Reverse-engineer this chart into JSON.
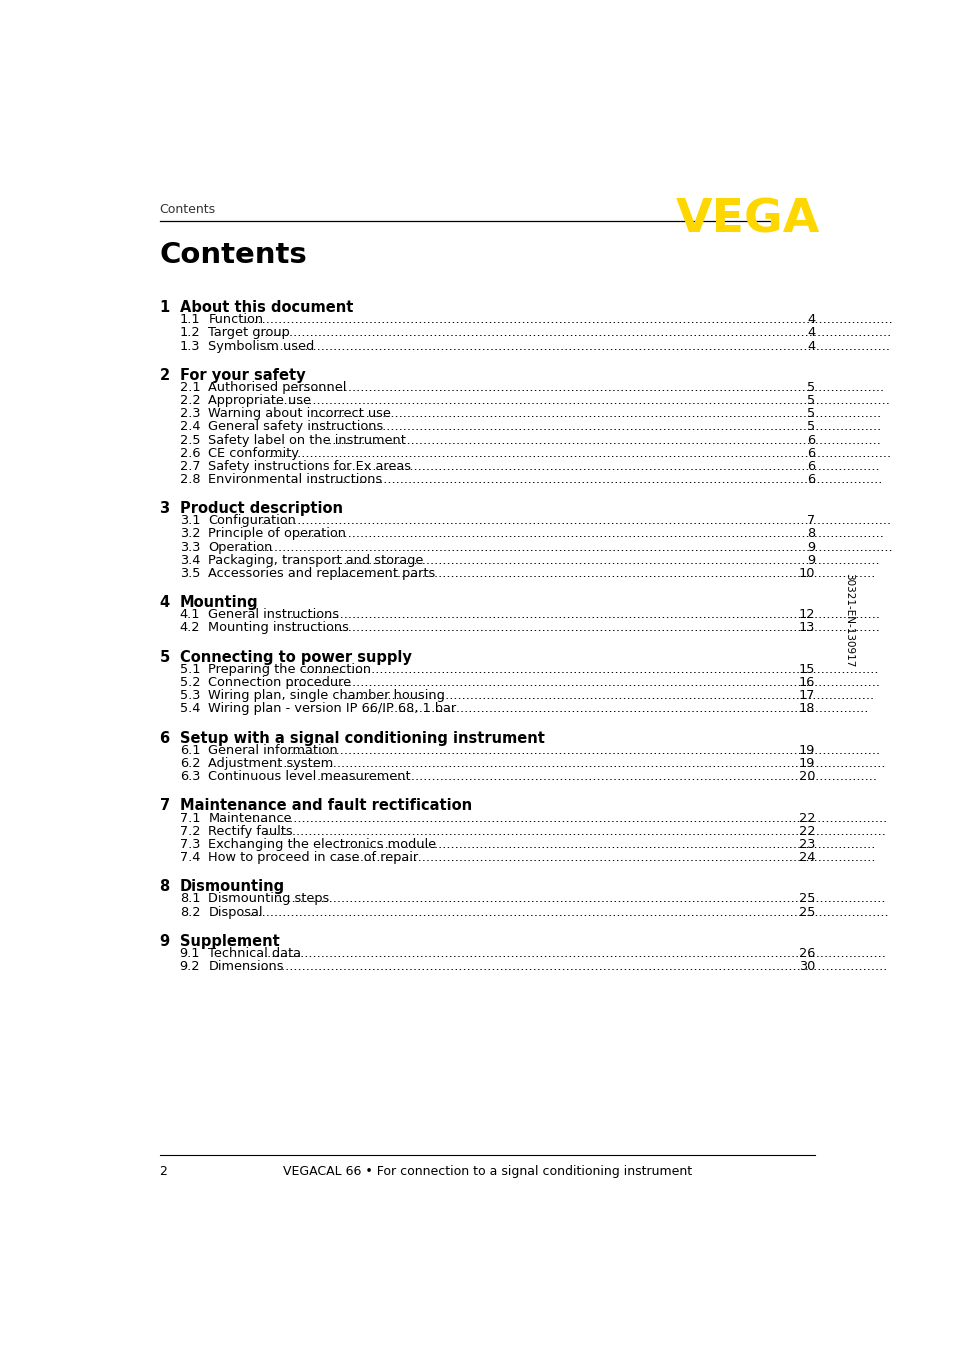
{
  "bg_color": "#ffffff",
  "header_text": "Contents",
  "header_color": "#333333",
  "vega_color": "#FFD700",
  "title": "Contents",
  "footer_page": "2",
  "footer_text": "VEGACAL 66 • For connection to a signal conditioning instrument",
  "side_text": "30321-EN-130917",
  "sections": [
    {
      "num": "1",
      "title": "About this document",
      "items": [
        {
          "num": "1.1",
          "text": "Function",
          "page": "4"
        },
        {
          "num": "1.2",
          "text": "Target group",
          "page": "4"
        },
        {
          "num": "1.3",
          "text": "Symbolism used",
          "page": "4"
        }
      ]
    },
    {
      "num": "2",
      "title": "For your safety",
      "items": [
        {
          "num": "2.1",
          "text": "Authorised personnel",
          "page": "5"
        },
        {
          "num": "2.2",
          "text": "Appropriate use",
          "page": "5"
        },
        {
          "num": "2.3",
          "text": "Warning about incorrect use",
          "page": "5"
        },
        {
          "num": "2.4",
          "text": "General safety instructions",
          "page": "5"
        },
        {
          "num": "2.5",
          "text": "Safety label on the instrument",
          "page": "6"
        },
        {
          "num": "2.6",
          "text": "CE conformity",
          "page": "6"
        },
        {
          "num": "2.7",
          "text": "Safety instructions for Ex areas",
          "page": "6"
        },
        {
          "num": "2.8",
          "text": "Environmental instructions",
          "page": "6"
        }
      ]
    },
    {
      "num": "3",
      "title": "Product description",
      "items": [
        {
          "num": "3.1",
          "text": "Configuration",
          "page": "7"
        },
        {
          "num": "3.2",
          "text": "Principle of operation",
          "page": "8"
        },
        {
          "num": "3.3",
          "text": "Operation",
          "page": "9"
        },
        {
          "num": "3.4",
          "text": "Packaging, transport and storage",
          "page": "9"
        },
        {
          "num": "3.5",
          "text": "Accessories and replacement parts",
          "page": "10"
        }
      ]
    },
    {
      "num": "4",
      "title": "Mounting",
      "items": [
        {
          "num": "4.1",
          "text": "General instructions",
          "page": "12"
        },
        {
          "num": "4.2",
          "text": "Mounting instructions",
          "page": "13"
        }
      ]
    },
    {
      "num": "5",
      "title": "Connecting to power supply",
      "items": [
        {
          "num": "5.1",
          "text": "Preparing the connection",
          "page": "15"
        },
        {
          "num": "5.2",
          "text": "Connection procedure",
          "page": "16"
        },
        {
          "num": "5.3",
          "text": "Wiring plan, single chamber housing",
          "page": "17"
        },
        {
          "num": "5.4",
          "text": "Wiring plan - version IP 66/IP 68, 1 bar",
          "page": "18"
        }
      ]
    },
    {
      "num": "6",
      "title": "Setup with a signal conditioning instrument",
      "items": [
        {
          "num": "6.1",
          "text": "General information",
          "page": "19"
        },
        {
          "num": "6.2",
          "text": "Adjustment system",
          "page": "19"
        },
        {
          "num": "6.3",
          "text": "Continuous level measurement",
          "page": "20"
        }
      ]
    },
    {
      "num": "7",
      "title": "Maintenance and fault rectification",
      "items": [
        {
          "num": "7.1",
          "text": "Maintenance",
          "page": "22"
        },
        {
          "num": "7.2",
          "text": "Rectify faults",
          "page": "22"
        },
        {
          "num": "7.3",
          "text": "Exchanging the electronics module",
          "page": "23"
        },
        {
          "num": "7.4",
          "text": "How to proceed in case of repair",
          "page": "24"
        }
      ]
    },
    {
      "num": "8",
      "title": "Dismounting",
      "items": [
        {
          "num": "8.1",
          "text": "Dismounting steps",
          "page": "25"
        },
        {
          "num": "8.2",
          "text": "Disposal",
          "page": "25"
        }
      ]
    },
    {
      "num": "9",
      "title": "Supplement",
      "items": [
        {
          "num": "9.1",
          "text": "Technical data",
          "page": "26"
        },
        {
          "num": "9.2",
          "text": "Dimensions",
          "page": "30"
        }
      ]
    }
  ]
}
